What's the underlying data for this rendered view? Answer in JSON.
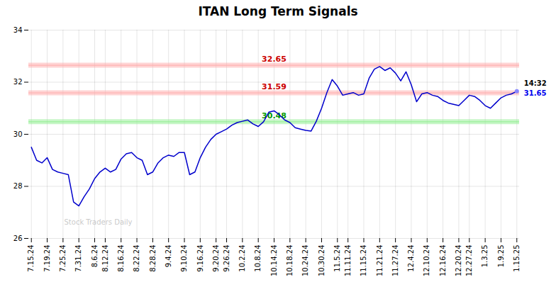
{
  "chart_data": {
    "type": "line",
    "title": "ITAN Long Term Signals",
    "categories": [
      "7.15.24",
      null,
      null,
      "7.19.24",
      null,
      null,
      "7.25.24",
      null,
      null,
      "7.31.24",
      null,
      null,
      "8.6.24",
      null,
      "8.12.24",
      null,
      null,
      "8.16.24",
      null,
      null,
      "8.22.24",
      null,
      null,
      "8.28.24",
      null,
      null,
      "9.4.24",
      null,
      null,
      "9.10.24",
      null,
      null,
      "9.16.24",
      null,
      null,
      "9.20.24",
      null,
      "9.26.24",
      null,
      null,
      "10.2.24",
      null,
      null,
      "10.8.24",
      null,
      null,
      "10.14.24",
      null,
      null,
      "10.18.24",
      null,
      null,
      "10.24.24",
      null,
      null,
      "10.30.24",
      null,
      null,
      "11.5.24",
      null,
      "11.11.24",
      null,
      null,
      "11.15.24",
      null,
      null,
      "11.21.24",
      null,
      null,
      "11.27.24",
      null,
      null,
      "12.4.24",
      null,
      null,
      "12.10.24",
      null,
      null,
      "12.16.24",
      null,
      null,
      "12.20.24",
      null,
      "12.27.24",
      null,
      null,
      "1.3.25",
      null,
      null,
      "1.9.25",
      null,
      null,
      "1.15.25"
    ],
    "values": [
      29.5,
      29.0,
      28.9,
      29.1,
      28.65,
      28.55,
      28.5,
      28.45,
      27.4,
      27.25,
      27.6,
      27.9,
      28.3,
      28.55,
      28.7,
      28.55,
      28.65,
      29.05,
      29.25,
      29.3,
      29.1,
      29.0,
      28.45,
      28.55,
      28.9,
      29.1,
      29.2,
      29.15,
      29.3,
      29.3,
      28.45,
      28.55,
      29.1,
      29.5,
      29.8,
      30.0,
      30.1,
      30.2,
      30.35,
      30.45,
      30.5,
      30.55,
      30.4,
      30.3,
      30.48,
      30.85,
      30.9,
      30.75,
      30.55,
      30.45,
      30.25,
      30.2,
      30.15,
      30.12,
      30.5,
      31.0,
      31.6,
      32.1,
      31.85,
      31.5,
      31.55,
      31.6,
      31.5,
      31.55,
      32.15,
      32.5,
      32.6,
      32.45,
      32.55,
      32.35,
      32.05,
      32.4,
      31.9,
      31.25,
      31.55,
      31.6,
      31.5,
      31.45,
      31.3,
      31.2,
      31.15,
      31.1,
      31.3,
      31.5,
      31.45,
      31.3,
      31.1,
      31.0,
      31.2,
      31.4,
      31.5,
      31.55,
      31.65
    ],
    "color": "#0000cc",
    "ylim": [
      26,
      34
    ],
    "yticks": [
      26,
      28,
      30,
      32,
      34
    ],
    "grid": true,
    "reference_lines": [
      {
        "value": 32.65,
        "label": "32.65",
        "color": "#ffaaaa",
        "label_color": "#cc0000"
      },
      {
        "value": 31.59,
        "label": "31.59",
        "color": "#ffaaaa",
        "label_color": "#cc0000"
      },
      {
        "value": 30.48,
        "label": "30.48",
        "color": "#90ee90",
        "label_color": "#009900"
      }
    ],
    "current": {
      "value": 31.65,
      "time": "14:32",
      "color": "#0000ee",
      "time_color": "#000000",
      "marker_color": "#8888ff"
    },
    "watermark": {
      "text": "Stock Traders Daily",
      "color": "#bbbbbb"
    }
  }
}
